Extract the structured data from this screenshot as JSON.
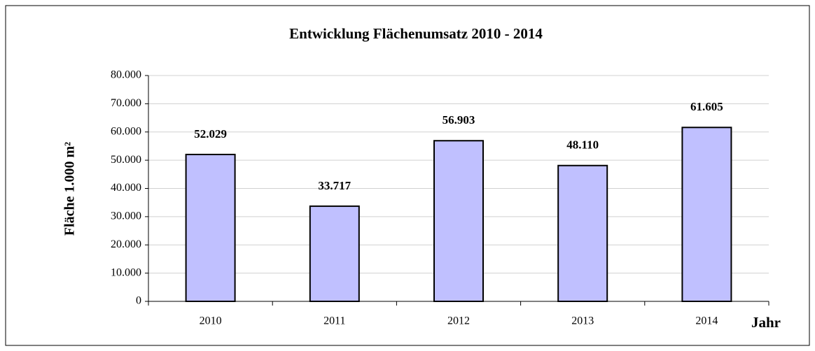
{
  "chart_data": {
    "type": "bar",
    "title": "Entwicklung Flächenumsatz 2010 - 2014",
    "y_label": "Fläche 1.000 m²",
    "x_label": "Jahr",
    "categories": [
      "2010",
      "2011",
      "2012",
      "2013",
      "2014"
    ],
    "values": [
      52029,
      33717,
      56903,
      48110,
      61605
    ],
    "value_labels": [
      "52.029",
      "33.717",
      "56.903",
      "48.110",
      "61.605"
    ],
    "color": "#c0c0ff",
    "ylim": [
      0,
      80000
    ],
    "yticks": [
      0,
      {
        "value": 10000,
        "label": "10.000"
      },
      {
        "value": 20000,
        "label": "20.000"
      },
      {
        "value": 30000,
        "label": "30.000"
      },
      {
        "value": 40000,
        "label": "40.000"
      },
      {
        "value": 50000,
        "label": "50.000"
      },
      {
        "value": 60000,
        "label": "60.000"
      },
      {
        "value": 70000,
        "label": "70.000"
      },
      {
        "value": 80000,
        "label": "80.000"
      }
    ],
    "grid": true
  }
}
